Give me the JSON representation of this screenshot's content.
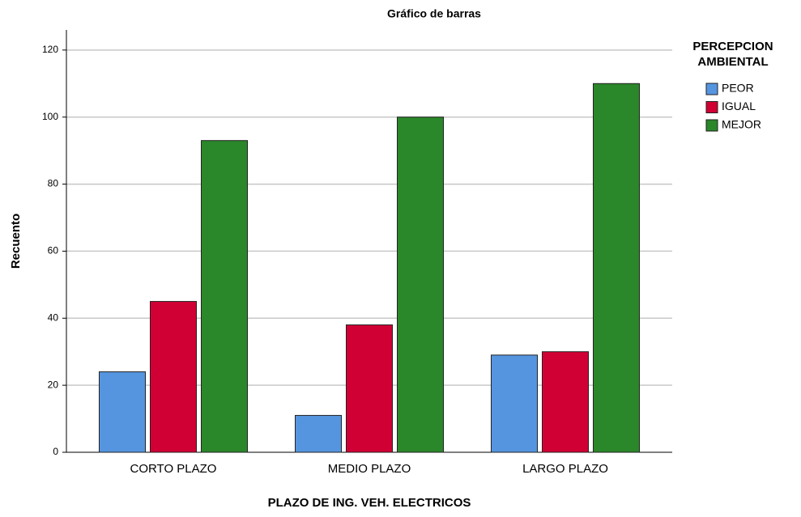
{
  "chart_data": {
    "type": "bar",
    "title": "Gráfico de barras",
    "x_label": "PLAZO DE ING. VEH. ELECTRICOS",
    "y_label": "Recuento",
    "legend_title": [
      "PERCEPCION",
      "AMBIENTAL"
    ],
    "categories": [
      "CORTO PLAZO",
      "MEDIO PLAZO",
      "LARGO PLAZO"
    ],
    "series": [
      {
        "name": "PEOR",
        "color": "#5595e0",
        "values": [
          24,
          11,
          29
        ]
      },
      {
        "name": "IGUAL",
        "color": "#d10034",
        "values": [
          45,
          38,
          30
        ]
      },
      {
        "name": "MEJOR",
        "color": "#2a872a",
        "values": [
          93,
          100,
          110
        ]
      }
    ],
    "ylim": [
      0,
      126
    ],
    "yticks": [
      0,
      20,
      40,
      60,
      80,
      100,
      120
    ],
    "grid": true,
    "legend": "right"
  }
}
